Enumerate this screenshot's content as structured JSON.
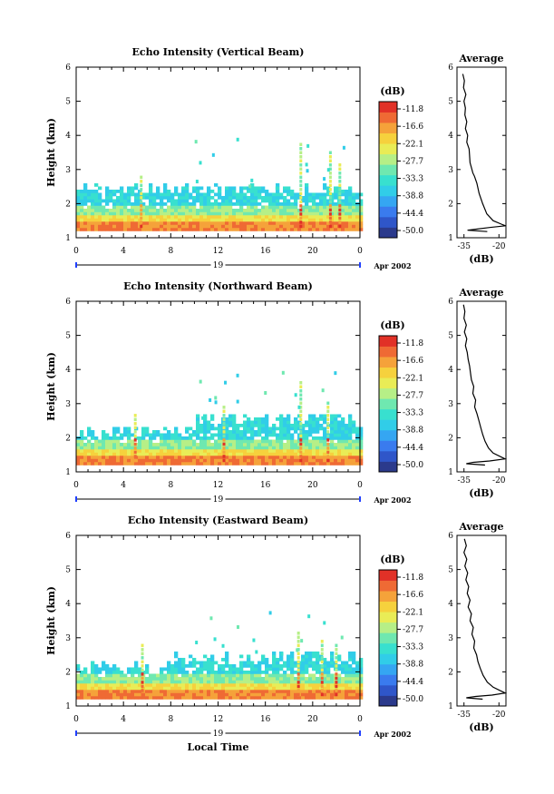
{
  "colors": {
    "scale": [
      "#2b3a8c",
      "#2f56c9",
      "#3a7bee",
      "#35a6f2",
      "#31cde8",
      "#38e0cf",
      "#6fe8b0",
      "#b6ef87",
      "#e9ec56",
      "#f6d13d",
      "#f5a23a",
      "#ef6a34",
      "#e13127"
    ],
    "frame": "#000000",
    "date_line": "#2040ff"
  },
  "chart_data": [
    {
      "type": "heatmap",
      "title": "Echo Intensity (Vertical Beam)",
      "xlabel": "",
      "ylabel": "Height (km)",
      "xlim": [
        0,
        24
      ],
      "ylim": [
        1,
        6
      ],
      "x_ticks": [
        "0",
        "4",
        "8",
        "12",
        "16",
        "20",
        "0"
      ],
      "y_ticks": [
        "1",
        "2",
        "3",
        "4",
        "5",
        "6"
      ],
      "date_label": "19",
      "month_label": "Apr 2002",
      "colorbar": {
        "unit": "(dB)",
        "labels": [
          "-11.8",
          "-16.6",
          "-22.1",
          "-27.7",
          "-33.3",
          "-38.8",
          "-44.4",
          "-50.0"
        ]
      },
      "profile": {
        "title": "Average",
        "xlabel": "(dB)",
        "x_ticks": [
          "-35",
          "-20"
        ],
        "xlim": [
          -38,
          -17
        ],
        "points": [
          [
            -35.5,
            5.8
          ],
          [
            -34.8,
            5.6
          ],
          [
            -35.2,
            5.4
          ],
          [
            -34.2,
            5.2
          ],
          [
            -35,
            5.0
          ],
          [
            -34.4,
            4.8
          ],
          [
            -34.6,
            4.6
          ],
          [
            -33.8,
            4.4
          ],
          [
            -34.4,
            4.2
          ],
          [
            -33.4,
            4.0
          ],
          [
            -33.8,
            3.8
          ],
          [
            -32.8,
            3.6
          ],
          [
            -32.6,
            3.4
          ],
          [
            -32.4,
            3.2
          ],
          [
            -31.6,
            3.0
          ],
          [
            -31.2,
            2.9
          ],
          [
            -30.5,
            2.8
          ],
          [
            -29.5,
            2.6
          ],
          [
            -28.5,
            2.3
          ],
          [
            -27.0,
            2.0
          ],
          [
            -25.2,
            1.7
          ],
          [
            -22.5,
            1.5
          ],
          [
            -19.0,
            1.4
          ],
          [
            -17.2,
            1.35
          ],
          [
            -24.0,
            1.3
          ],
          [
            -30.0,
            1.25
          ],
          [
            -33.5,
            1.22
          ],
          [
            -25.0,
            1.18
          ]
        ]
      }
    },
    {
      "type": "heatmap",
      "title": "Echo Intensity (Northward Beam)",
      "xlabel": "",
      "ylabel": "Height (km)",
      "xlim": [
        0,
        24
      ],
      "ylim": [
        1,
        6
      ],
      "x_ticks": [
        "0",
        "4",
        "8",
        "12",
        "16",
        "20",
        "0"
      ],
      "y_ticks": [
        "1",
        "2",
        "3",
        "4",
        "5",
        "6"
      ],
      "date_label": "19",
      "month_label": "Apr 2002",
      "colorbar": {
        "unit": "(dB)",
        "labels": [
          "-11.8",
          "-16.6",
          "-22.1",
          "-27.7",
          "-33.3",
          "-38.8",
          "-44.4",
          "-50.0"
        ]
      },
      "profile": {
        "title": "Average",
        "xlabel": "(dB)",
        "x_ticks": [
          "-35",
          "-20"
        ],
        "xlim": [
          -38,
          -17
        ],
        "points": [
          [
            -35.2,
            5.9
          ],
          [
            -34.6,
            5.7
          ],
          [
            -35.0,
            5.5
          ],
          [
            -34.0,
            5.3
          ],
          [
            -34.8,
            5.1
          ],
          [
            -33.8,
            4.9
          ],
          [
            -34.4,
            4.7
          ],
          [
            -33.6,
            4.5
          ],
          [
            -33.2,
            4.3
          ],
          [
            -32.6,
            4.1
          ],
          [
            -32.2,
            3.9
          ],
          [
            -31.8,
            3.7
          ],
          [
            -30.8,
            3.5
          ],
          [
            -31.2,
            3.3
          ],
          [
            -30.0,
            3.1
          ],
          [
            -30.4,
            2.9
          ],
          [
            -29.4,
            2.7
          ],
          [
            -28.6,
            2.5
          ],
          [
            -27.8,
            2.3
          ],
          [
            -27.0,
            2.1
          ],
          [
            -26.0,
            1.9
          ],
          [
            -24.5,
            1.7
          ],
          [
            -22.5,
            1.55
          ],
          [
            -19.5,
            1.45
          ],
          [
            -17.4,
            1.38
          ],
          [
            -24.0,
            1.32
          ],
          [
            -31.0,
            1.28
          ],
          [
            -34.0,
            1.24
          ],
          [
            -26.0,
            1.2
          ]
        ]
      }
    },
    {
      "type": "heatmap",
      "title": "Echo Intensity (Eastward Beam)",
      "xlabel": "Local Time",
      "ylabel": "Height (km)",
      "xlim": [
        0,
        24
      ],
      "ylim": [
        1,
        6
      ],
      "x_ticks": [
        "0",
        "4",
        "8",
        "12",
        "16",
        "20",
        "0"
      ],
      "y_ticks": [
        "1",
        "2",
        "3",
        "4",
        "5",
        "6"
      ],
      "date_label": "19",
      "month_label": "Apr 2002",
      "colorbar": {
        "unit": "(dB)",
        "labels": [
          "-11.8",
          "-16.6",
          "-22.1",
          "-27.7",
          "-33.3",
          "-38.8",
          "-44.4",
          "-50.0"
        ]
      },
      "profile": {
        "title": "Average",
        "xlabel": "(dB)",
        "x_ticks": [
          "-35",
          "-20"
        ],
        "xlim": [
          -38,
          -17
        ],
        "points": [
          [
            -34.8,
            5.9
          ],
          [
            -34.0,
            5.7
          ],
          [
            -35.0,
            5.5
          ],
          [
            -33.8,
            5.3
          ],
          [
            -34.6,
            5.1
          ],
          [
            -33.4,
            4.9
          ],
          [
            -34.2,
            4.7
          ],
          [
            -33.0,
            4.5
          ],
          [
            -33.6,
            4.3
          ],
          [
            -32.4,
            4.1
          ],
          [
            -33.2,
            3.9
          ],
          [
            -31.8,
            3.7
          ],
          [
            -32.4,
            3.5
          ],
          [
            -31.0,
            3.3
          ],
          [
            -31.6,
            3.1
          ],
          [
            -30.4,
            2.9
          ],
          [
            -30.8,
            2.7
          ],
          [
            -29.6,
            2.5
          ],
          [
            -29.0,
            2.3
          ],
          [
            -28.0,
            2.1
          ],
          [
            -26.8,
            1.9
          ],
          [
            -25.0,
            1.7
          ],
          [
            -22.5,
            1.55
          ],
          [
            -19.5,
            1.45
          ],
          [
            -17.3,
            1.38
          ],
          [
            -23.0,
            1.32
          ],
          [
            -30.0,
            1.28
          ],
          [
            -34.0,
            1.24
          ],
          [
            -27.0,
            1.2
          ]
        ]
      }
    }
  ]
}
